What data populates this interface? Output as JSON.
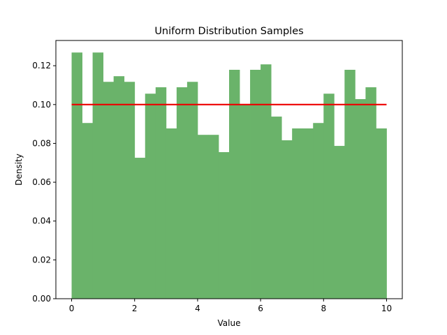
{
  "chart_data": {
    "type": "bar",
    "title": "Uniform Distribution Samples",
    "xlabel": "Value",
    "ylabel": "Density",
    "xlim": [
      -0.5,
      10.5
    ],
    "ylim": [
      0,
      0.133
    ],
    "xticks": [
      "0",
      "2",
      "4",
      "6",
      "8",
      "10"
    ],
    "yticks": [
      "0.00",
      "0.02",
      "0.04",
      "0.06",
      "0.08",
      "0.10",
      "0.12"
    ],
    "grid": false,
    "bin_range": [
      0,
      10
    ],
    "bins": 30,
    "values": [
      0.1268,
      0.0905,
      0.1268,
      0.1117,
      0.1146,
      0.1117,
      0.0726,
      0.1056,
      0.1089,
      0.0877,
      0.1089,
      0.1117,
      0.0844,
      0.0844,
      0.0755,
      0.1179,
      0.1,
      0.1179,
      0.1207,
      0.0938,
      0.0816,
      0.0877,
      0.0877,
      0.0905,
      0.1056,
      0.0787,
      0.1179,
      0.1028,
      0.1089,
      0.0877
    ],
    "reference_line": {
      "x": [
        0,
        10
      ],
      "y": 0.1,
      "color": "#ee0000"
    },
    "bar_color": "#6ab36a"
  }
}
